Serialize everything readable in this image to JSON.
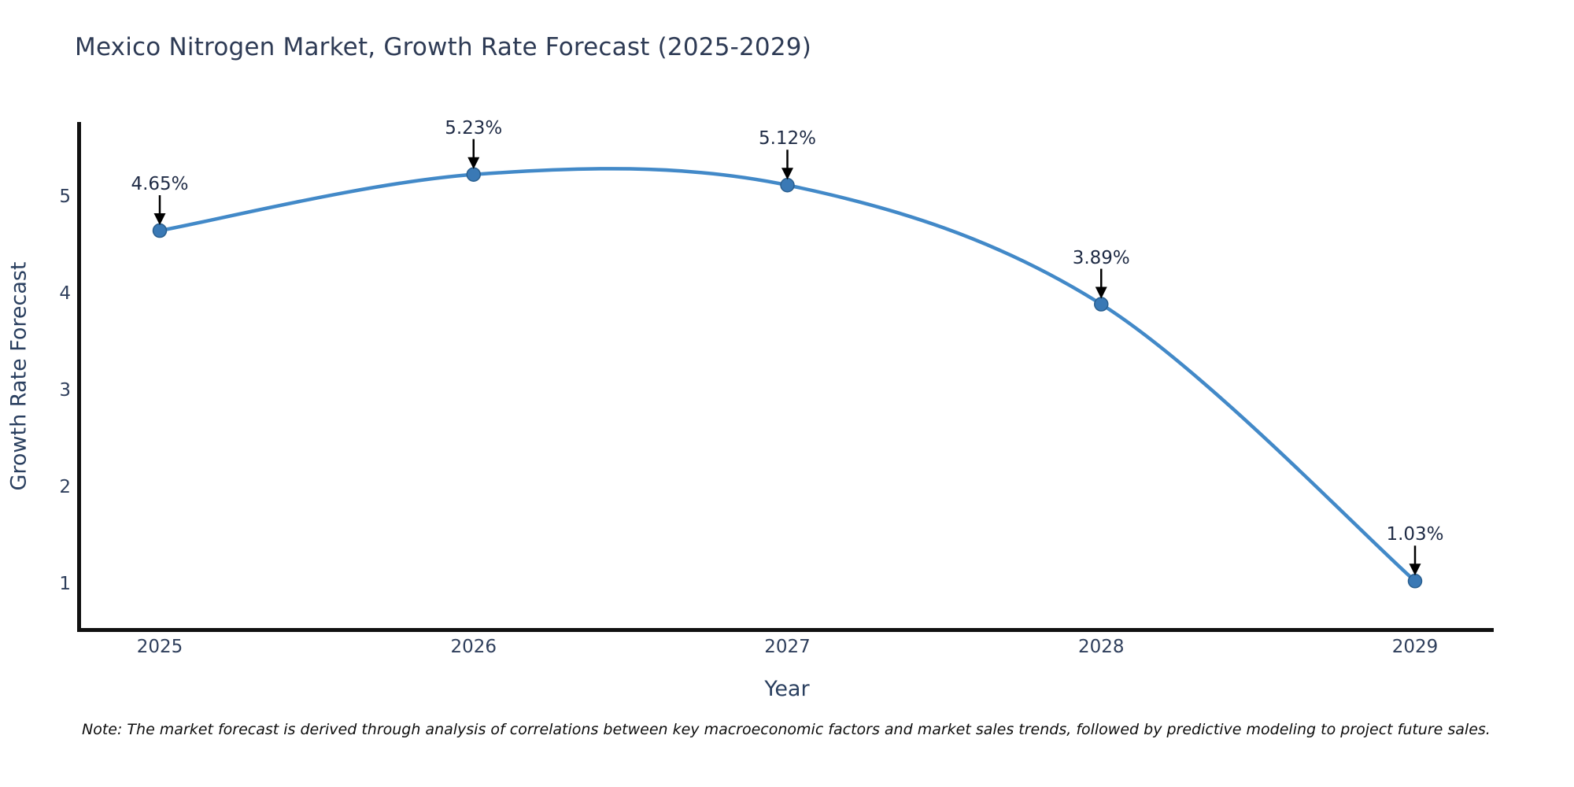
{
  "chart_data": {
    "type": "line",
    "title": "Mexico Nitrogen Market, Growth Rate Forecast (2025-2029)",
    "x": [
      2025,
      2026,
      2027,
      2028,
      2029
    ],
    "y": [
      4.65,
      5.23,
      5.12,
      3.89,
      1.03
    ],
    "point_labels": [
      "4.65%",
      "5.23%",
      "5.12%",
      "3.89%",
      "1.03%"
    ],
    "xlabel": "Year",
    "ylabel": "Growth Rate Forecast",
    "y_ticks": [
      1,
      2,
      3,
      4,
      5
    ],
    "x_tick_labels": [
      "2025",
      "2026",
      "2027",
      "2028",
      "2029"
    ],
    "ylim": [
      0.5,
      5.8
    ],
    "grid": "off",
    "legend": "none",
    "line_shape": "spline",
    "line_color": "#4289c8",
    "marker_color": "#3a79b5",
    "marker_edge_color": "#2a5f8f",
    "axis_spine_color": "#111111",
    "annotation_arrow_color": "#000000",
    "title_color": "#2e3b55",
    "note": "Note: The market forecast is derived through analysis of correlations between key macroeconomic factors and market sales trends, followed by predictive modeling to project future sales."
  }
}
